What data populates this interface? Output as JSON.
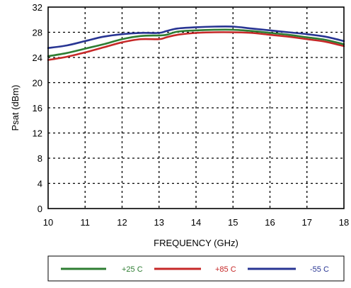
{
  "chart_data": {
    "type": "line",
    "xlabel": "FREQUENCY (GHz)",
    "ylabel": "Psat (dBm)",
    "xlim": [
      10,
      18
    ],
    "ylim": [
      0,
      32
    ],
    "xticks": [
      10,
      11,
      12,
      13,
      14,
      15,
      16,
      17,
      18
    ],
    "yticks": [
      0,
      4,
      8,
      12,
      16,
      20,
      24,
      28,
      32
    ],
    "grid": true,
    "legend_position": "bottom",
    "x": [
      10,
      10.5,
      11,
      11.5,
      12,
      12.5,
      13,
      13.2,
      13.5,
      14,
      14.5,
      15,
      15.5,
      16,
      16.5,
      17,
      17.5,
      18
    ],
    "series": [
      {
        "name": "+25 C",
        "color": "#2e7d32",
        "values": [
          24.2,
          24.7,
          25.4,
          26.1,
          26.9,
          27.4,
          27.5,
          27.6,
          28.1,
          28.3,
          28.4,
          28.4,
          28.2,
          27.9,
          27.6,
          27.2,
          26.8,
          26.1
        ]
      },
      {
        "name": "+85 C",
        "color": "#c62828",
        "values": [
          23.6,
          24.1,
          24.8,
          25.6,
          26.4,
          26.9,
          26.9,
          27.2,
          27.6,
          27.9,
          28.0,
          28.0,
          27.9,
          27.6,
          27.3,
          26.9,
          26.5,
          25.8
        ]
      },
      {
        "name": "-55 C",
        "color": "#283593",
        "values": [
          25.5,
          25.9,
          26.6,
          27.3,
          27.7,
          27.9,
          27.9,
          28.2,
          28.6,
          28.8,
          28.9,
          28.9,
          28.6,
          28.3,
          28.0,
          27.7,
          27.3,
          26.6
        ]
      }
    ]
  }
}
